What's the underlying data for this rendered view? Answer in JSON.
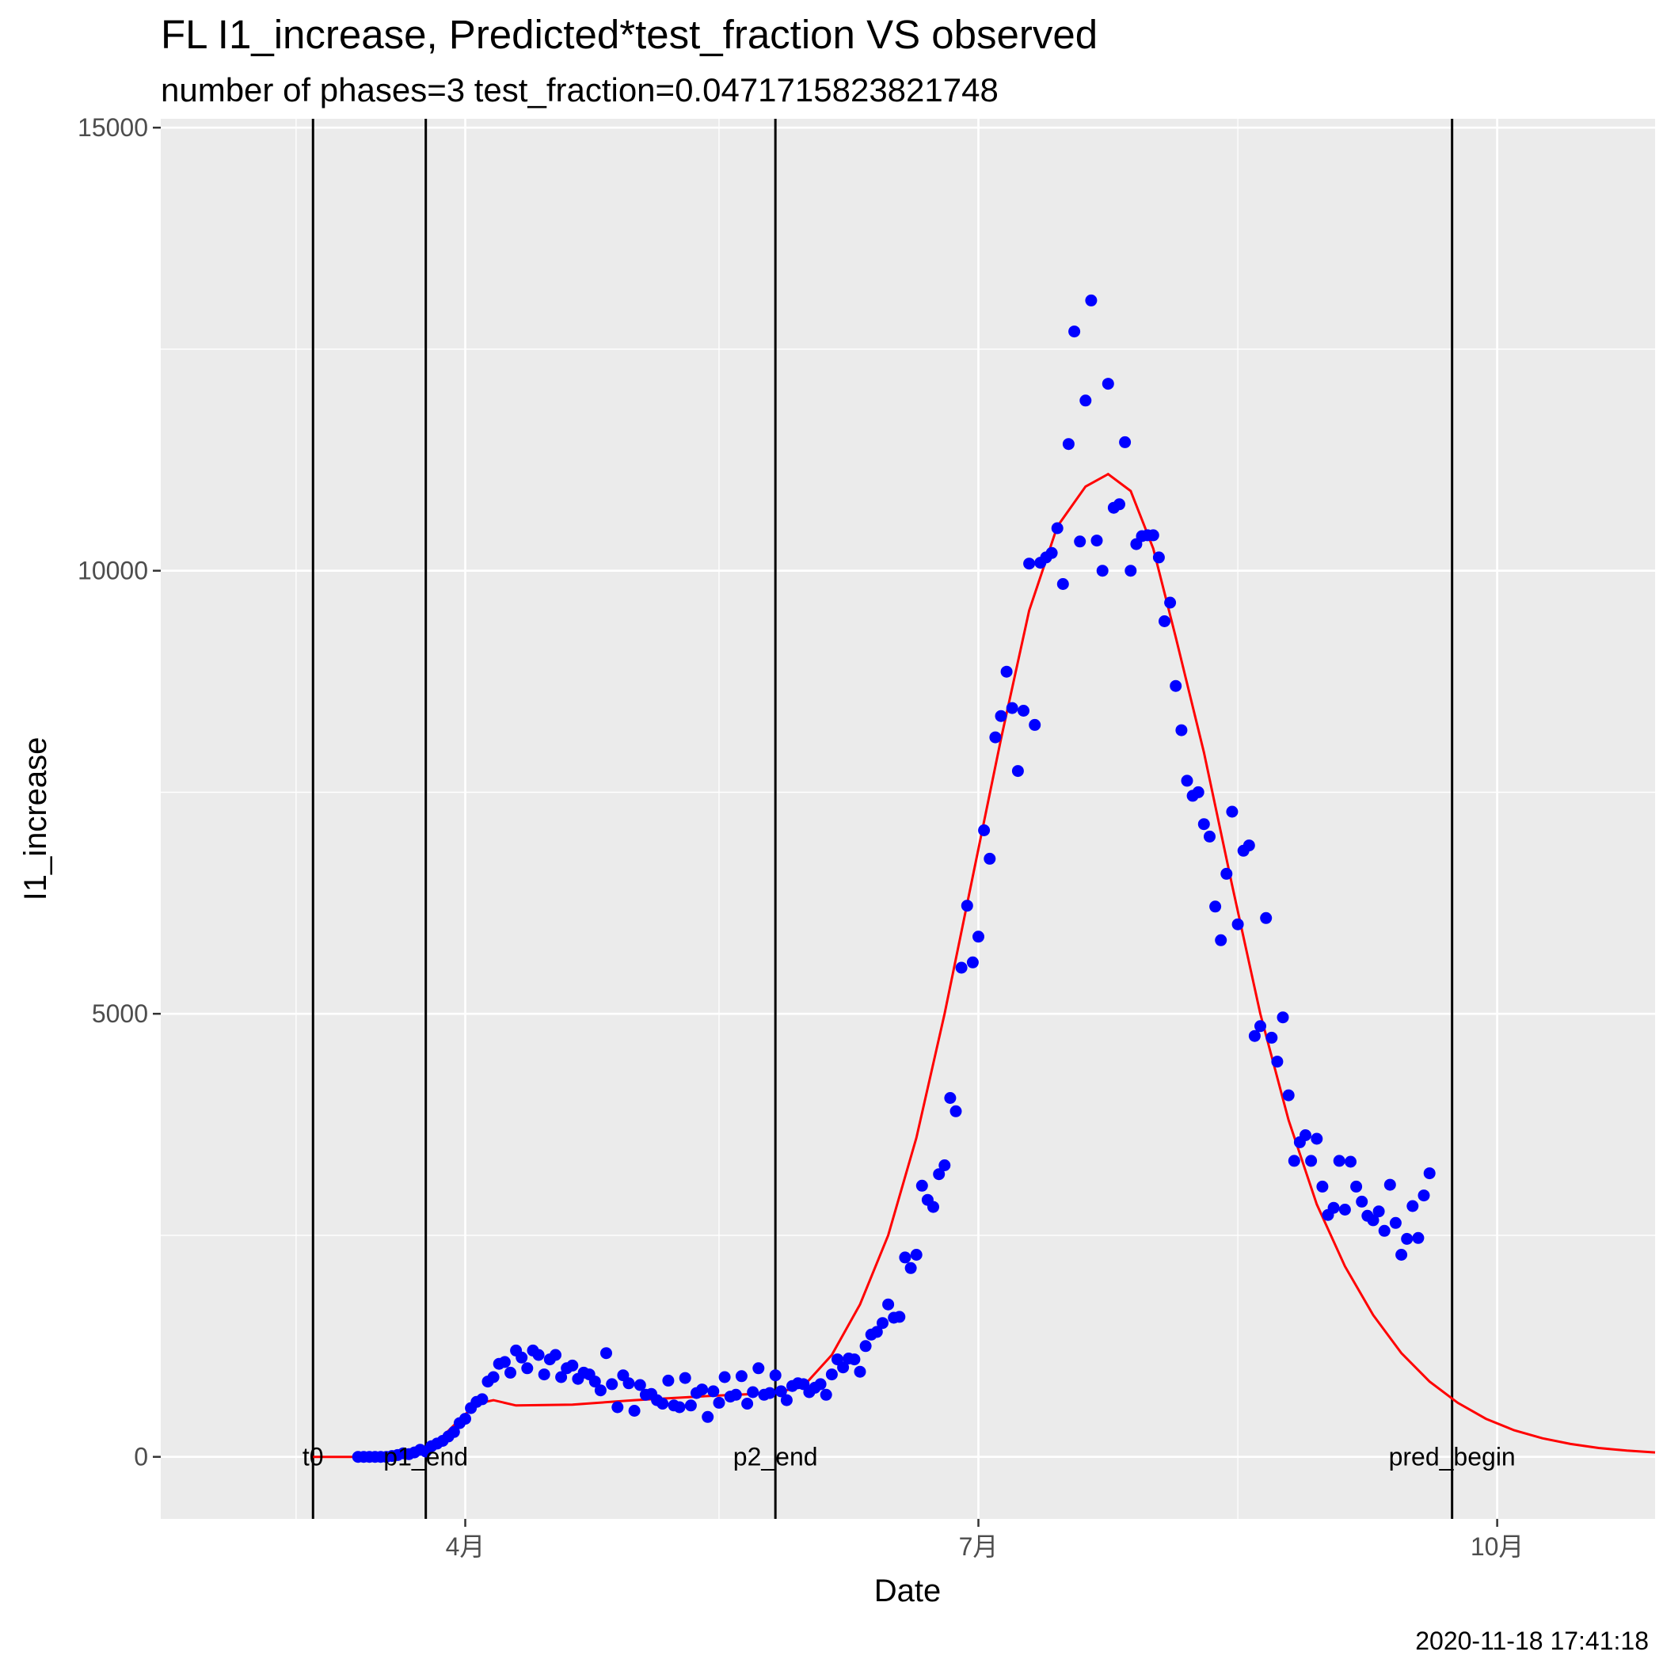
{
  "chart_data": {
    "type": "scatter",
    "title": "FL I1_increase, Predicted*test_fraction VS observed",
    "subtitle": "number of phases=3   test_fraction=0.0471715823821748",
    "xlabel": "Date",
    "ylabel": "I1_increase",
    "timestamp": "2020-11-18 17:41:18",
    "x_type": "date",
    "xlim": [
      "2020-02-07",
      "2020-10-29"
    ],
    "ylim": [
      -700,
      15100
    ],
    "grid": true,
    "legend": "none",
    "background_color": "#ebebeb",
    "grid_color": "#ffffff",
    "x_ticks": [
      {
        "date": "2020-04-01",
        "label": "4月"
      },
      {
        "date": "2020-07-01",
        "label": "7月"
      },
      {
        "date": "2020-10-01",
        "label": "10月"
      }
    ],
    "x_minor_ticks": [
      "2020-03-02",
      "2020-05-16",
      "2020-08-16"
    ],
    "y_ticks": [
      0,
      5000,
      10000,
      15000
    ],
    "y_minor_ticks": [
      2500,
      7500,
      12500
    ],
    "vlines": [
      {
        "date": "2020-03-05",
        "label": "t0"
      },
      {
        "date": "2020-03-25",
        "label": "p1_end"
      },
      {
        "date": "2020-05-26",
        "label": "p2_end"
      },
      {
        "date": "2020-09-23",
        "label": "pred_begin"
      }
    ],
    "series": [
      {
        "kind": "points",
        "color": "#0000ff",
        "points": [
          [
            "2020-03-13",
            0
          ],
          [
            "2020-03-14",
            0
          ],
          [
            "2020-03-15",
            0
          ],
          [
            "2020-03-16",
            0
          ],
          [
            "2020-03-17",
            0
          ],
          [
            "2020-03-18",
            0
          ],
          [
            "2020-03-19",
            10
          ],
          [
            "2020-03-20",
            20
          ],
          [
            "2020-03-21",
            40
          ],
          [
            "2020-03-22",
            30
          ],
          [
            "2020-03-23",
            50
          ],
          [
            "2020-03-24",
            80
          ],
          [
            "2020-03-25",
            60
          ],
          [
            "2020-03-26",
            120
          ],
          [
            "2020-03-27",
            150
          ],
          [
            "2020-03-28",
            180
          ],
          [
            "2020-03-29",
            230
          ],
          [
            "2020-03-30",
            280
          ],
          [
            "2020-03-31",
            380
          ],
          [
            "2020-04-01",
            430
          ],
          [
            "2020-04-02",
            550
          ],
          [
            "2020-04-03",
            620
          ],
          [
            "2020-04-04",
            650
          ],
          [
            "2020-04-05",
            850
          ],
          [
            "2020-04-06",
            900
          ],
          [
            "2020-04-07",
            1050
          ],
          [
            "2020-04-08",
            1070
          ],
          [
            "2020-04-09",
            950
          ],
          [
            "2020-04-10",
            1200
          ],
          [
            "2020-04-11",
            1120
          ],
          [
            "2020-04-12",
            1000
          ],
          [
            "2020-04-13",
            1200
          ],
          [
            "2020-04-14",
            1150
          ],
          [
            "2020-04-15",
            930
          ],
          [
            "2020-04-16",
            1100
          ],
          [
            "2020-04-17",
            1150
          ],
          [
            "2020-04-18",
            900
          ],
          [
            "2020-04-19",
            1000
          ],
          [
            "2020-04-20",
            1030
          ],
          [
            "2020-04-21",
            880
          ],
          [
            "2020-04-22",
            950
          ],
          [
            "2020-04-23",
            930
          ],
          [
            "2020-04-24",
            850
          ],
          [
            "2020-04-25",
            750
          ],
          [
            "2020-04-26",
            1170
          ],
          [
            "2020-04-27",
            820
          ],
          [
            "2020-04-28",
            560
          ],
          [
            "2020-04-29",
            920
          ],
          [
            "2020-04-30",
            830
          ],
          [
            "2020-05-01",
            520
          ],
          [
            "2020-05-02",
            810
          ],
          [
            "2020-05-03",
            700
          ],
          [
            "2020-05-04",
            710
          ],
          [
            "2020-05-05",
            640
          ],
          [
            "2020-05-06",
            600
          ],
          [
            "2020-05-07",
            860
          ],
          [
            "2020-05-08",
            580
          ],
          [
            "2020-05-09",
            560
          ],
          [
            "2020-05-10",
            890
          ],
          [
            "2020-05-11",
            580
          ],
          [
            "2020-05-12",
            720
          ],
          [
            "2020-05-13",
            760
          ],
          [
            "2020-05-14",
            450
          ],
          [
            "2020-05-15",
            740
          ],
          [
            "2020-05-16",
            610
          ],
          [
            "2020-05-17",
            900
          ],
          [
            "2020-05-18",
            680
          ],
          [
            "2020-05-19",
            700
          ],
          [
            "2020-05-20",
            910
          ],
          [
            "2020-05-21",
            600
          ],
          [
            "2020-05-22",
            730
          ],
          [
            "2020-05-23",
            1000
          ],
          [
            "2020-05-24",
            700
          ],
          [
            "2020-05-25",
            720
          ],
          [
            "2020-05-26",
            920
          ],
          [
            "2020-05-27",
            740
          ],
          [
            "2020-05-28",
            640
          ],
          [
            "2020-05-29",
            800
          ],
          [
            "2020-05-30",
            830
          ],
          [
            "2020-05-31",
            820
          ],
          [
            "2020-06-01",
            730
          ],
          [
            "2020-06-02",
            780
          ],
          [
            "2020-06-03",
            820
          ],
          [
            "2020-06-04",
            700
          ],
          [
            "2020-06-05",
            930
          ],
          [
            "2020-06-06",
            1100
          ],
          [
            "2020-06-07",
            1010
          ],
          [
            "2020-06-08",
            1110
          ],
          [
            "2020-06-09",
            1100
          ],
          [
            "2020-06-10",
            960
          ],
          [
            "2020-06-11",
            1250
          ],
          [
            "2020-06-12",
            1380
          ],
          [
            "2020-06-13",
            1410
          ],
          [
            "2020-06-14",
            1510
          ],
          [
            "2020-06-15",
            1720
          ],
          [
            "2020-06-16",
            1570
          ],
          [
            "2020-06-17",
            1580
          ],
          [
            "2020-06-18",
            2250
          ],
          [
            "2020-06-19",
            2130
          ],
          [
            "2020-06-20",
            2280
          ],
          [
            "2020-06-21",
            3060
          ],
          [
            "2020-06-22",
            2900
          ],
          [
            "2020-06-23",
            2820
          ],
          [
            "2020-06-24",
            3190
          ],
          [
            "2020-06-25",
            3290
          ],
          [
            "2020-06-26",
            4050
          ],
          [
            "2020-06-27",
            3900
          ],
          [
            "2020-06-28",
            5520
          ],
          [
            "2020-06-29",
            6220
          ],
          [
            "2020-06-30",
            5580
          ],
          [
            "2020-07-01",
            5870
          ],
          [
            "2020-07-02",
            7070
          ],
          [
            "2020-07-03",
            6750
          ],
          [
            "2020-07-04",
            8120
          ],
          [
            "2020-07-05",
            8360
          ],
          [
            "2020-07-06",
            8860
          ],
          [
            "2020-07-07",
            8450
          ],
          [
            "2020-07-08",
            7740
          ],
          [
            "2020-07-09",
            8420
          ],
          [
            "2020-07-10",
            10080
          ],
          [
            "2020-07-11",
            8260
          ],
          [
            "2020-07-12",
            10090
          ],
          [
            "2020-07-13",
            10150
          ],
          [
            "2020-07-14",
            10200
          ],
          [
            "2020-07-15",
            10480
          ],
          [
            "2020-07-16",
            9850
          ],
          [
            "2020-07-17",
            11430
          ],
          [
            "2020-07-18",
            12700
          ],
          [
            "2020-07-19",
            10330
          ],
          [
            "2020-07-20",
            11920
          ],
          [
            "2020-07-21",
            13050
          ],
          [
            "2020-07-22",
            10340
          ],
          [
            "2020-07-23",
            10000
          ],
          [
            "2020-07-24",
            12110
          ],
          [
            "2020-07-25",
            10710
          ],
          [
            "2020-07-26",
            10750
          ],
          [
            "2020-07-27",
            11450
          ],
          [
            "2020-07-28",
            10000
          ],
          [
            "2020-07-29",
            10300
          ],
          [
            "2020-07-30",
            10390
          ],
          [
            "2020-07-31",
            10400
          ],
          [
            "2020-08-01",
            10400
          ],
          [
            "2020-08-02",
            10150
          ],
          [
            "2020-08-03",
            9430
          ],
          [
            "2020-08-04",
            9640
          ],
          [
            "2020-08-05",
            8700
          ],
          [
            "2020-08-06",
            8200
          ],
          [
            "2020-08-07",
            7630
          ],
          [
            "2020-08-08",
            7460
          ],
          [
            "2020-08-09",
            7500
          ],
          [
            "2020-08-10",
            7140
          ],
          [
            "2020-08-11",
            7000
          ],
          [
            "2020-08-12",
            6210
          ],
          [
            "2020-08-13",
            5830
          ],
          [
            "2020-08-14",
            6580
          ],
          [
            "2020-08-15",
            7280
          ],
          [
            "2020-08-16",
            6010
          ],
          [
            "2020-08-17",
            6840
          ],
          [
            "2020-08-18",
            6900
          ],
          [
            "2020-08-19",
            4750
          ],
          [
            "2020-08-20",
            4860
          ],
          [
            "2020-08-21",
            6080
          ],
          [
            "2020-08-22",
            4730
          ],
          [
            "2020-08-23",
            4460
          ],
          [
            "2020-08-24",
            4960
          ],
          [
            "2020-08-25",
            4080
          ],
          [
            "2020-08-26",
            3340
          ],
          [
            "2020-08-27",
            3550
          ],
          [
            "2020-08-28",
            3630
          ],
          [
            "2020-08-29",
            3340
          ],
          [
            "2020-08-30",
            3590
          ],
          [
            "2020-08-31",
            3050
          ],
          [
            "2020-09-01",
            2730
          ],
          [
            "2020-09-02",
            2810
          ],
          [
            "2020-09-03",
            3340
          ],
          [
            "2020-09-04",
            2790
          ],
          [
            "2020-09-05",
            3330
          ],
          [
            "2020-09-06",
            3050
          ],
          [
            "2020-09-07",
            2880
          ],
          [
            "2020-09-08",
            2720
          ],
          [
            "2020-09-09",
            2670
          ],
          [
            "2020-09-10",
            2770
          ],
          [
            "2020-09-11",
            2550
          ],
          [
            "2020-09-12",
            3070
          ],
          [
            "2020-09-13",
            2640
          ],
          [
            "2020-09-14",
            2280
          ],
          [
            "2020-09-15",
            2460
          ],
          [
            "2020-09-16",
            2830
          ],
          [
            "2020-09-17",
            2470
          ],
          [
            "2020-09-18",
            2950
          ],
          [
            "2020-09-19",
            3200
          ]
        ]
      },
      {
        "kind": "line",
        "color": "#ff0000",
        "points": [
          [
            "2020-03-05",
            0
          ],
          [
            "2020-03-13",
            0
          ],
          [
            "2020-03-20",
            30
          ],
          [
            "2020-03-25",
            100
          ],
          [
            "2020-03-28",
            230
          ],
          [
            "2020-03-31",
            420
          ],
          [
            "2020-04-03",
            600
          ],
          [
            "2020-04-06",
            640
          ],
          [
            "2020-04-10",
            580
          ],
          [
            "2020-04-20",
            590
          ],
          [
            "2020-05-01",
            640
          ],
          [
            "2020-05-15",
            690
          ],
          [
            "2020-05-26",
            720
          ],
          [
            "2020-05-31",
            800
          ],
          [
            "2020-06-05",
            1150
          ],
          [
            "2020-06-10",
            1720
          ],
          [
            "2020-06-15",
            2500
          ],
          [
            "2020-06-20",
            3600
          ],
          [
            "2020-06-25",
            5000
          ],
          [
            "2020-06-30",
            6550
          ],
          [
            "2020-07-05",
            8100
          ],
          [
            "2020-07-10",
            9550
          ],
          [
            "2020-07-15",
            10500
          ],
          [
            "2020-07-20",
            10950
          ],
          [
            "2020-07-24",
            11090
          ],
          [
            "2020-07-28",
            10900
          ],
          [
            "2020-08-01",
            10250
          ],
          [
            "2020-08-05",
            9250
          ],
          [
            "2020-08-10",
            7950
          ],
          [
            "2020-08-15",
            6450
          ],
          [
            "2020-08-20",
            5000
          ],
          [
            "2020-08-25",
            3800
          ],
          [
            "2020-08-30",
            2850
          ],
          [
            "2020-09-04",
            2150
          ],
          [
            "2020-09-09",
            1600
          ],
          [
            "2020-09-14",
            1170
          ],
          [
            "2020-09-19",
            850
          ],
          [
            "2020-09-24",
            610
          ],
          [
            "2020-09-29",
            430
          ],
          [
            "2020-10-04",
            300
          ],
          [
            "2020-10-09",
            210
          ],
          [
            "2020-10-14",
            145
          ],
          [
            "2020-10-19",
            100
          ],
          [
            "2020-10-24",
            70
          ],
          [
            "2020-10-29",
            50
          ]
        ]
      }
    ]
  }
}
